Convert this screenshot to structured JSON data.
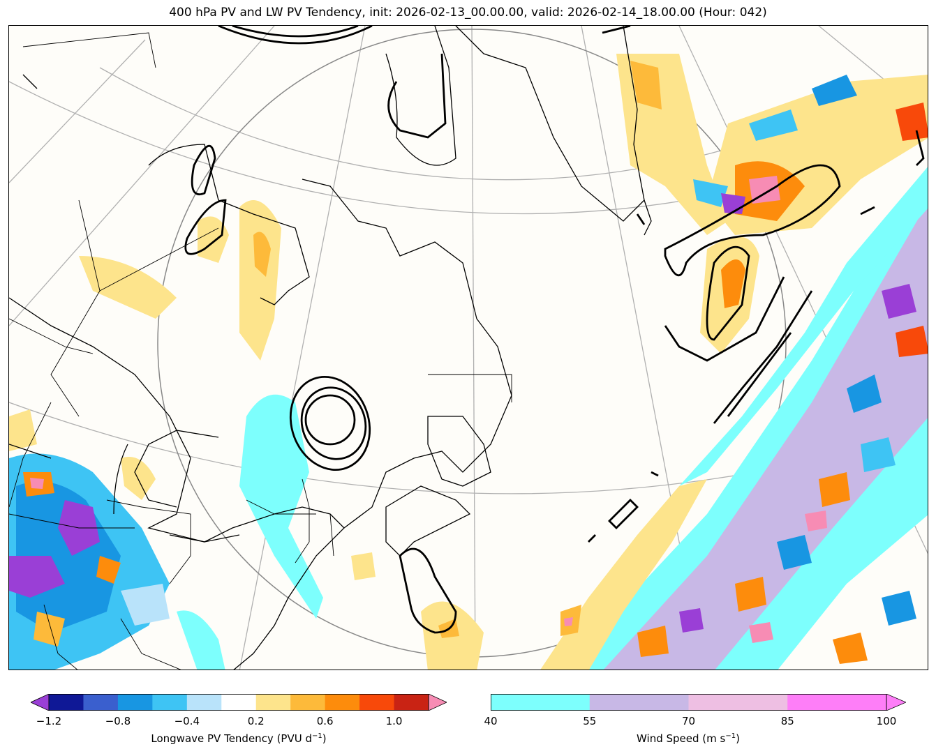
{
  "title": "400 hPa PV and LW PV Tendency, init: 2026-02-13_00.00.00, valid: 2026-02-14_18.00.00 (Hour: 042)",
  "colorbars": {
    "pv_tendency": {
      "label": "Longwave PV Tendency (PVU d",
      "label_sup": "−1",
      "label_end": ")",
      "ticks": [
        "−1.2",
        "−0.8",
        "−0.4",
        "0.2",
        "0.6",
        "1.0"
      ],
      "tick_values": [
        -1.2,
        -0.8,
        -0.4,
        0.2,
        0.6,
        1.0
      ],
      "bounds": [
        -1.2,
        -1.0,
        -0.8,
        -0.6,
        -0.4,
        -0.2,
        0.2,
        0.4,
        0.6,
        0.8,
        1.0,
        1.2
      ],
      "colors": [
        "#0f1896",
        "#3a5fce",
        "#1896e2",
        "#3ec4f4",
        "#b9e3fa",
        "#ffffff",
        "#fde48c",
        "#fdba3a",
        "#fd8c0c",
        "#f8490a",
        "#c92314"
      ],
      "under_color": "#9a3fd6",
      "over_color": "#f78cb4"
    },
    "wind_speed": {
      "label": "Wind Speed (m s",
      "label_sup": "−1",
      "label_end": ")",
      "ticks": [
        "40",
        "55",
        "70",
        "85",
        "100"
      ],
      "tick_values": [
        40,
        55,
        70,
        85,
        100
      ],
      "colors": [
        "#7dfffd",
        "#c8b8e6",
        "#eebfe3",
        "#fe7ef8"
      ],
      "over_color": "#fe7ef8"
    }
  }
}
